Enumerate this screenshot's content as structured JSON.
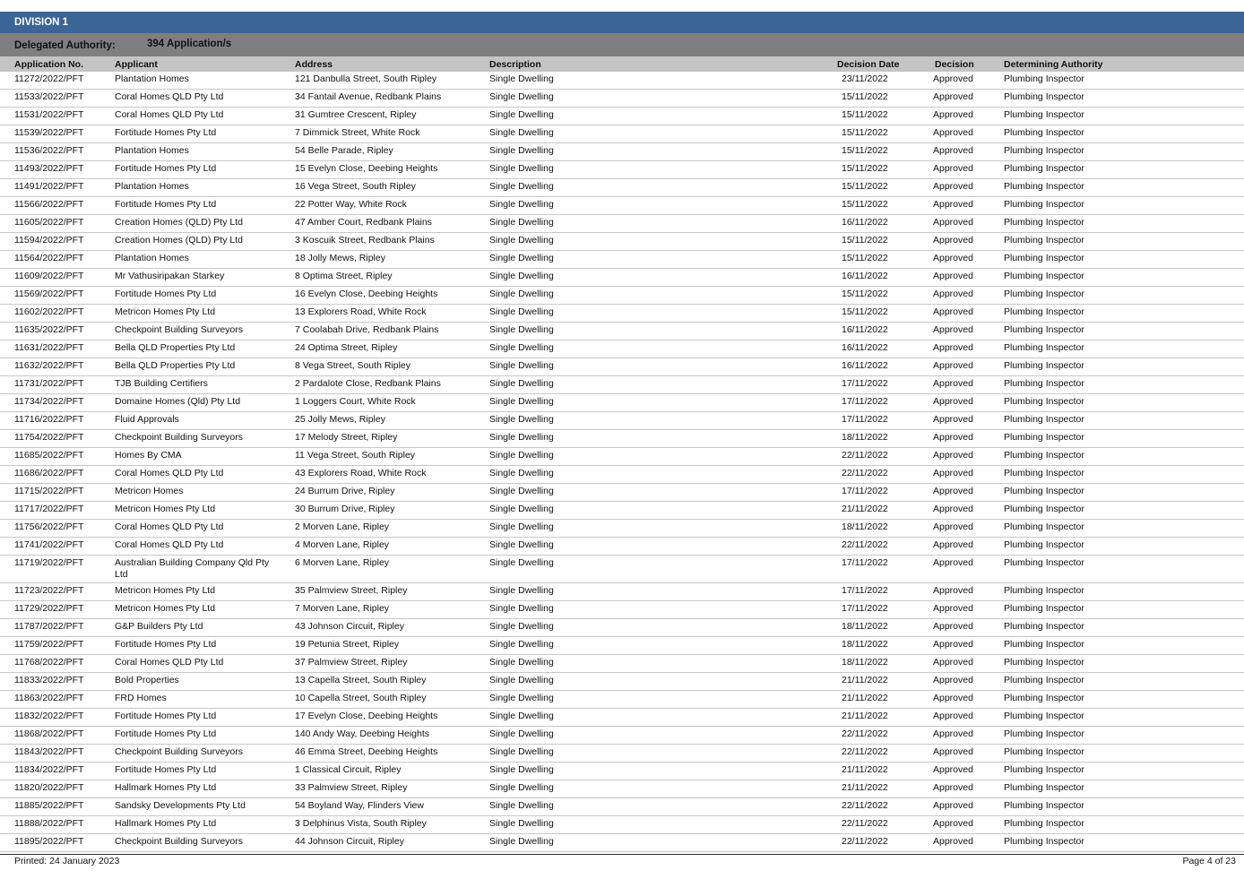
{
  "division": "DIVISION 1",
  "authority": {
    "label": "Delegated Authority:",
    "count": "394 Application/s"
  },
  "columns": [
    "Application No.",
    "Applicant",
    "Address",
    "Description",
    "Decision Date",
    "Decision",
    "Determining Authority"
  ],
  "rows": [
    [
      "11272/2022/PFT",
      "Plantation Homes",
      "121 Danbulla Street, South Ripley",
      "Single Dwelling",
      "23/11/2022",
      "Approved",
      "Plumbing Inspector"
    ],
    [
      "11533/2022/PFT",
      "Coral Homes QLD Pty Ltd",
      "34 Fantail Avenue, Redbank Plains",
      "Single Dwelling",
      "15/11/2022",
      "Approved",
      "Plumbing Inspector"
    ],
    [
      "11531/2022/PFT",
      "Coral Homes QLD Pty Ltd",
      "31 Gumtree Crescent, Ripley",
      "Single Dwelling",
      "15/11/2022",
      "Approved",
      "Plumbing Inspector"
    ],
    [
      "11539/2022/PFT",
      "Fortitude Homes Pty Ltd",
      "7 Dimmick Street, White Rock",
      "Single Dwelling",
      "15/11/2022",
      "Approved",
      "Plumbing Inspector"
    ],
    [
      "11536/2022/PFT",
      "Plantation Homes",
      "54 Belle Parade, Ripley",
      "Single Dwelling",
      "15/11/2022",
      "Approved",
      "Plumbing Inspector"
    ],
    [
      "11493/2022/PFT",
      "Fortitude Homes Pty Ltd",
      "15 Evelyn Close, Deebing Heights",
      "Single Dwelling",
      "15/11/2022",
      "Approved",
      "Plumbing Inspector"
    ],
    [
      "11491/2022/PFT",
      "Plantation Homes",
      "16 Vega Street, South Ripley",
      "Single Dwelling",
      "15/11/2022",
      "Approved",
      "Plumbing Inspector"
    ],
    [
      "11566/2022/PFT",
      "Fortitude Homes Pty Ltd",
      "22 Potter Way, White Rock",
      "Single Dwelling",
      "15/11/2022",
      "Approved",
      "Plumbing Inspector"
    ],
    [
      "11605/2022/PFT",
      "Creation Homes (QLD) Pty Ltd",
      "47 Amber Court, Redbank Plains",
      "Single Dwelling",
      "16/11/2022",
      "Approved",
      "Plumbing Inspector"
    ],
    [
      "11594/2022/PFT",
      "Creation Homes (QLD) Pty Ltd",
      "3 Koscuik Street, Redbank Plains",
      "Single Dwelling",
      "15/11/2022",
      "Approved",
      "Plumbing Inspector"
    ],
    [
      "11564/2022/PFT",
      "Plantation Homes",
      "18 Jolly Mews, Ripley",
      "Single Dwelling",
      "15/11/2022",
      "Approved",
      "Plumbing Inspector"
    ],
    [
      "11609/2022/PFT",
      "Mr Vathusiripakan Starkey",
      "8 Optima Street, Ripley",
      "Single Dwelling",
      "16/11/2022",
      "Approved",
      "Plumbing Inspector"
    ],
    [
      "11569/2022/PFT",
      "Fortitude Homes Pty Ltd",
      "16 Evelyn Close, Deebing Heights",
      "Single Dwelling",
      "15/11/2022",
      "Approved",
      "Plumbing Inspector"
    ],
    [
      "11602/2022/PFT",
      "Metricon Homes Pty Ltd",
      "13 Explorers Road, White Rock",
      "Single Dwelling",
      "15/11/2022",
      "Approved",
      "Plumbing Inspector"
    ],
    [
      "11635/2022/PFT",
      "Checkpoint Building Surveyors",
      "7 Coolabah Drive, Redbank Plains",
      "Single Dwelling",
      "16/11/2022",
      "Approved",
      "Plumbing Inspector"
    ],
    [
      "11631/2022/PFT",
      "Bella QLD Properties Pty Ltd",
      "24 Optima Street, Ripley",
      "Single Dwelling",
      "16/11/2022",
      "Approved",
      "Plumbing Inspector"
    ],
    [
      "11632/2022/PFT",
      "Bella QLD Properties Pty Ltd",
      "8 Vega Street, South Ripley",
      "Single Dwelling",
      "16/11/2022",
      "Approved",
      "Plumbing Inspector"
    ],
    [
      "11731/2022/PFT",
      "TJB Building Certifiers",
      "2 Pardalote Close, Redbank Plains",
      "Single Dwelling",
      "17/11/2022",
      "Approved",
      "Plumbing Inspector"
    ],
    [
      "11734/2022/PFT",
      "Domaine Homes (Qld) Pty Ltd",
      "1 Loggers Court, White Rock",
      "Single Dwelling",
      "17/11/2022",
      "Approved",
      "Plumbing Inspector"
    ],
    [
      "11716/2022/PFT",
      "Fluid Approvals",
      "25 Jolly Mews, Ripley",
      "Single Dwelling",
      "17/11/2022",
      "Approved",
      "Plumbing Inspector"
    ],
    [
      "11754/2022/PFT",
      "Checkpoint Building Surveyors",
      "17 Melody Street, Ripley",
      "Single Dwelling",
      "18/11/2022",
      "Approved",
      "Plumbing Inspector"
    ],
    [
      "11685/2022/PFT",
      "Homes By CMA",
      "11 Vega Street, South Ripley",
      "Single Dwelling",
      "22/11/2022",
      "Approved",
      "Plumbing Inspector"
    ],
    [
      "11686/2022/PFT",
      "Coral Homes QLD Pty Ltd",
      "43 Explorers Road, White Rock",
      "Single Dwelling",
      "22/11/2022",
      "Approved",
      "Plumbing Inspector"
    ],
    [
      "11715/2022/PFT",
      "Metricon Homes",
      "24 Burrum Drive, Ripley",
      "Single Dwelling",
      "17/11/2022",
      "Approved",
      "Plumbing Inspector"
    ],
    [
      "11717/2022/PFT",
      "Metricon Homes Pty Ltd",
      "30 Burrum Drive, Ripley",
      "Single Dwelling",
      "21/11/2022",
      "Approved",
      "Plumbing Inspector"
    ],
    [
      "11756/2022/PFT",
      "Coral Homes QLD Pty Ltd",
      "2 Morven Lane, Ripley",
      "Single Dwelling",
      "18/11/2022",
      "Approved",
      "Plumbing Inspector"
    ],
    [
      "11741/2022/PFT",
      "Coral Homes QLD Pty Ltd",
      "4 Morven Lane, Ripley",
      "Single Dwelling",
      "22/11/2022",
      "Approved",
      "Plumbing Inspector"
    ],
    [
      "11719/2022/PFT",
      "Australian Building Company Qld Pty Ltd",
      "6 Morven Lane, Ripley",
      "Single Dwelling",
      "17/11/2022",
      "Approved",
      "Plumbing Inspector"
    ],
    [
      "11723/2022/PFT",
      "Metricon Homes Pty Ltd",
      "35 Palmview Street, Ripley",
      "Single Dwelling",
      "17/11/2022",
      "Approved",
      "Plumbing Inspector"
    ],
    [
      "11729/2022/PFT",
      "Metricon Homes Pty Ltd",
      "7 Morven Lane, Ripley",
      "Single Dwelling",
      "17/11/2022",
      "Approved",
      "Plumbing Inspector"
    ],
    [
      "11787/2022/PFT",
      "G&P Builders Pty Ltd",
      "43 Johnson Circuit, Ripley",
      "Single Dwelling",
      "18/11/2022",
      "Approved",
      "Plumbing Inspector"
    ],
    [
      "11759/2022/PFT",
      "Fortitude Homes Pty Ltd",
      "19 Petunia Street, Ripley",
      "Single Dwelling",
      "18/11/2022",
      "Approved",
      "Plumbing Inspector"
    ],
    [
      "11768/2022/PFT",
      "Coral Homes QLD Pty Ltd",
      "37 Palmview Street, Ripley",
      "Single Dwelling",
      "18/11/2022",
      "Approved",
      "Plumbing Inspector"
    ],
    [
      "11833/2022/PFT",
      "Bold Properties",
      "13 Capella Street, South Ripley",
      "Single Dwelling",
      "21/11/2022",
      "Approved",
      "Plumbing Inspector"
    ],
    [
      "11863/2022/PFT",
      "FRD Homes",
      "10 Capella Street, South Ripley",
      "Single Dwelling",
      "21/11/2022",
      "Approved",
      "Plumbing Inspector"
    ],
    [
      "11832/2022/PFT",
      "Fortitude Homes Pty Ltd",
      "17 Evelyn Close, Deebing Heights",
      "Single Dwelling",
      "21/11/2022",
      "Approved",
      "Plumbing Inspector"
    ],
    [
      "11868/2022/PFT",
      "Fortitude Homes Pty Ltd",
      "140 Andy Way, Deebing Heights",
      "Single Dwelling",
      "22/11/2022",
      "Approved",
      "Plumbing Inspector"
    ],
    [
      "11843/2022/PFT",
      "Checkpoint Building Surveyors",
      "46 Emma Street, Deebing Heights",
      "Single Dwelling",
      "22/11/2022",
      "Approved",
      "Plumbing Inspector"
    ],
    [
      "11834/2022/PFT",
      "Fortitude Homes Pty Ltd",
      "1 Classical Circuit, Ripley",
      "Single Dwelling",
      "21/11/2022",
      "Approved",
      "Plumbing Inspector"
    ],
    [
      "11820/2022/PFT",
      "Hallmark Homes Pty Ltd",
      "33 Palmview Street, Ripley",
      "Single Dwelling",
      "21/11/2022",
      "Approved",
      "Plumbing Inspector"
    ],
    [
      "11885/2022/PFT",
      "Sandsky Developments Pty Ltd",
      "54 Boyland Way, Flinders View",
      "Single Dwelling",
      "22/11/2022",
      "Approved",
      "Plumbing Inspector"
    ],
    [
      "11888/2022/PFT",
      "Hallmark Homes Pty Ltd",
      "3 Delphinus Vista, South Ripley",
      "Single Dwelling",
      "22/11/2022",
      "Approved",
      "Plumbing Inspector"
    ],
    [
      "11895/2022/PFT",
      "Checkpoint Building Surveyors",
      "44 Johnson Circuit, Ripley",
      "Single Dwelling",
      "22/11/2022",
      "Approved",
      "Plumbing Inspector"
    ]
  ],
  "footer": {
    "printed": "Printed: 24 January 2023",
    "page": "Page 4 of 23"
  },
  "colors": {
    "division_bar": "#3b6497",
    "authority_bar": "#7f7f7f",
    "header_bar": "#c4c4c4"
  }
}
